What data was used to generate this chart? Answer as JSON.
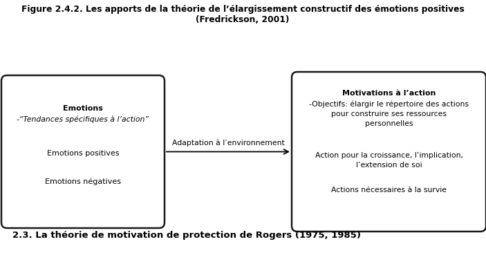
{
  "title_line1": "Figure 2.4.2. Les apports de la théorie de l’élargissement constructif des émotions positives",
  "title_line2": "(Fredrickson, 2001)",
  "left_box": {
    "title": "Emotions",
    "subtitle": "-“Tendances spécifiques à l’action”",
    "item1": "Emotions positives",
    "item2": "Emotions négatives"
  },
  "arrow_label": "Adaptation à l’environnement",
  "right_box": {
    "title": "Motivations à l’action",
    "item1": "-Objectifs: élargir le répertoire des actions\npour construire ses ressources\npersonnelles",
    "item2": "Action pour la croissance, l’implication,\nl’extension de soi",
    "item3": "Actions nécessaires à la survie"
  },
  "bottom_text": "2.3. La théorie de motivation de protection de Rogers (1975, 1985)",
  "bg_color": "#ffffff",
  "text_color": "#000000",
  "box_edge_color": "#1a1a1a",
  "title_fontsize": 8.8,
  "content_fontsize": 8,
  "small_fontsize": 7.8
}
